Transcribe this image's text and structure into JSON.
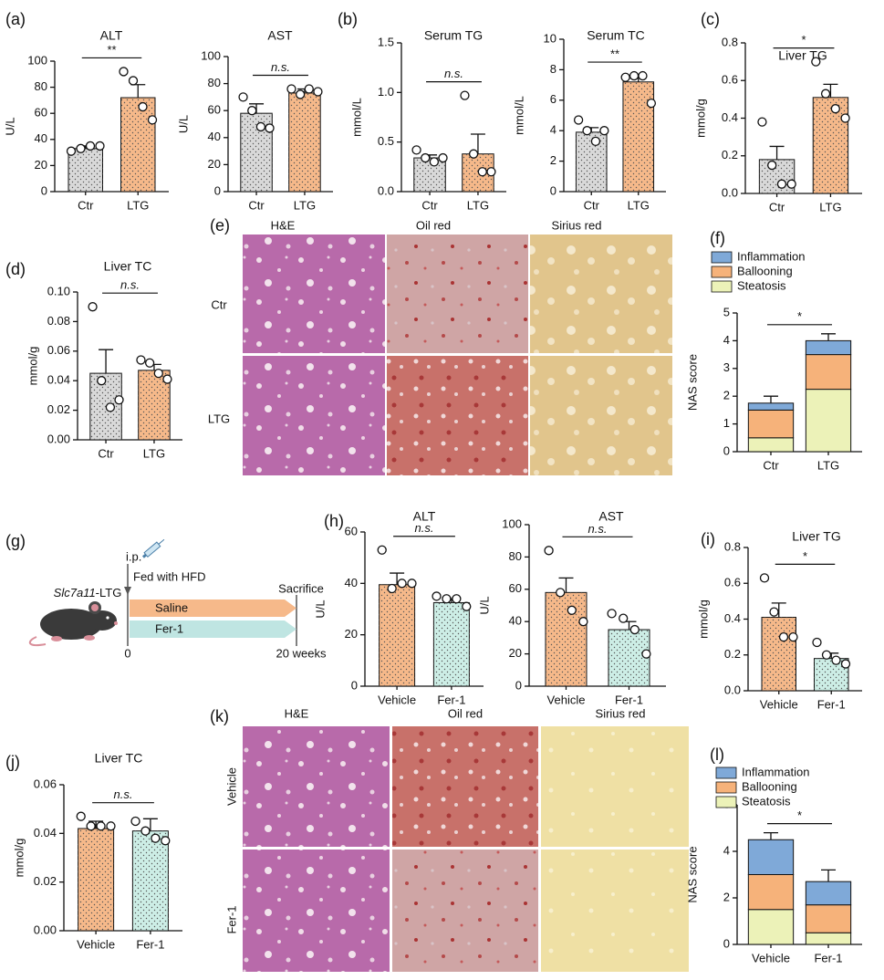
{
  "panel_labels": [
    "(a)",
    "(b)",
    "(c)",
    "(d)",
    "(e)",
    "(f)",
    "(g)",
    "(h)",
    "(i)",
    "(j)",
    "(k)",
    "(l)"
  ],
  "histology_e": {
    "columns": [
      "H&E",
      "Oil red",
      "Sirius red"
    ],
    "rows": [
      "Ctr",
      "LTG"
    ]
  },
  "histology_k": {
    "columns": [
      "H&E",
      "Oil red",
      "Sirius red"
    ],
    "rows": [
      "Vehicle",
      "Fer-1"
    ]
  },
  "schematic": {
    "route": "i.p.",
    "diet": "Fed with HFD",
    "strain_gene": "Slc7a11",
    "strain_suffix": "-LTG",
    "groups": [
      "Saline",
      "Fer-1"
    ],
    "endpoint": "Sacrifice",
    "start": "0",
    "end": "20 weeks"
  },
  "chart_data": [
    {
      "type": "bar",
      "title": "ALT",
      "ylabel": "U/L",
      "categories": [
        "Ctr",
        "LTG"
      ],
      "values": [
        33,
        72
      ],
      "errors": [
        2,
        10
      ],
      "points": [
        [
          31,
          33,
          35,
          35
        ],
        [
          92,
          85,
          65,
          55
        ]
      ],
      "colors": [
        "#d9d9d9",
        "#f6b98a"
      ],
      "ylim": [
        0,
        100
      ],
      "yticks": [
        0,
        20,
        40,
        60,
        80,
        100
      ],
      "significance": "**"
    },
    {
      "type": "bar",
      "title": "AST",
      "ylabel": "U/L",
      "categories": [
        "Ctr",
        "LTG"
      ],
      "values": [
        58,
        73
      ],
      "errors": [
        7,
        3
      ],
      "points": [
        [
          70,
          60,
          48,
          47
        ],
        [
          76,
          72,
          76,
          74
        ]
      ],
      "colors": [
        "#d9d9d9",
        "#f6b98a"
      ],
      "ylim": [
        0,
        100
      ],
      "yticks": [
        0,
        20,
        40,
        60,
        80,
        100
      ],
      "significance": "n.s."
    },
    {
      "type": "bar",
      "title": "Serum TG",
      "ylabel": "mmol/L",
      "categories": [
        "Ctr",
        "LTG"
      ],
      "values": [
        0.34,
        0.38
      ],
      "errors": [
        0.03,
        0.2
      ],
      "points": [
        [
          0.42,
          0.34,
          0.3,
          0.34
        ],
        [
          0.97,
          0.38,
          0.2,
          0.2
        ]
      ],
      "colors": [
        "#d9d9d9",
        "#f6b98a"
      ],
      "ylim": [
        0,
        1.5
      ],
      "yticks": [
        {
          "value": 0,
          "label": "0.0"
        },
        0.5,
        {
          "value": 1,
          "label": "1.0"
        },
        1.5
      ],
      "significance": "n.s."
    },
    {
      "type": "bar",
      "title": "Serum TC",
      "ylabel": "mmol/L",
      "categories": [
        "Ctr",
        "LTG"
      ],
      "values": [
        3.9,
        7.2
      ],
      "errors": [
        0.3,
        0.5
      ],
      "points": [
        [
          4.7,
          4.0,
          3.3,
          4.0
        ],
        [
          7.5,
          7.6,
          7.6,
          5.8
        ]
      ],
      "colors": [
        "#d9d9d9",
        "#f6b98a"
      ],
      "ylim": [
        0,
        10
      ],
      "yticks": [
        0,
        2,
        4,
        6,
        8,
        10
      ],
      "significance": "**"
    },
    {
      "type": "bar",
      "title": "Liver TG",
      "ylabel": "mmol/g",
      "categories": [
        "Ctr",
        "LTG"
      ],
      "values": [
        0.18,
        0.51
      ],
      "errors": [
        0.07,
        0.07
      ],
      "points": [
        [
          0.38,
          0.15,
          0.05,
          0.05
        ],
        [
          0.7,
          0.53,
          0.45,
          0.4
        ]
      ],
      "colors": [
        "#d9d9d9",
        "#f6b98a"
      ],
      "ylim": [
        0,
        0.8
      ],
      "yticks": [
        {
          "value": 0,
          "label": "0.0"
        },
        0.2,
        0.4,
        0.6,
        0.8
      ],
      "significance": "*"
    },
    {
      "type": "bar",
      "title": "Liver TC",
      "ylabel": "mmol/g",
      "categories": [
        "Ctr",
        "LTG"
      ],
      "values": [
        0.045,
        0.047
      ],
      "errors": [
        0.016,
        0.004
      ],
      "points": [
        [
          0.09,
          0.04,
          0.022,
          0.027
        ],
        [
          0.054,
          0.052,
          0.045,
          0.041
        ]
      ],
      "colors": [
        "#d9d9d9",
        "#f6b98a"
      ],
      "ylim": [
        0,
        0.1
      ],
      "yticks": [
        {
          "value": 0,
          "label": "0.00"
        },
        0.02,
        0.04,
        0.06,
        0.08,
        {
          "value": 0.1,
          "label": "0.10"
        }
      ],
      "significance": "n.s."
    },
    {
      "type": "stacked_bar",
      "ylabel": "NAS score",
      "categories": [
        "Ctr",
        "LTG"
      ],
      "series": [
        {
          "name": "Steatosis",
          "color": "#ecf2b8",
          "values": [
            0.5,
            2.25
          ],
          "errors": [
            0.25,
            0.25
          ]
        },
        {
          "name": "Ballooning",
          "color": "#f6b27a",
          "values": [
            1.0,
            1.25
          ],
          "errors": [
            0,
            0.25
          ]
        },
        {
          "name": "Inflammation",
          "color": "#7fa9d8",
          "values": [
            0.25,
            0.5
          ],
          "errors": [
            0.25,
            0.25
          ]
        }
      ],
      "ylim": [
        0,
        5
      ],
      "yticks": [
        0,
        1,
        2,
        3,
        4,
        5
      ],
      "significance": "*"
    },
    {
      "type": "bar",
      "title": "ALT",
      "ylabel": "U/L",
      "categories": [
        "Vehicle",
        "Fer-1"
      ],
      "values": [
        39.5,
        32.5
      ],
      "errors": [
        4.5,
        1.5
      ],
      "points": [
        [
          53,
          38,
          40,
          40
        ],
        [
          35,
          34,
          34,
          31
        ]
      ],
      "colors": [
        "#f6b98a",
        "#cdeee6"
      ],
      "ylim": [
        0,
        60
      ],
      "yticks": [
        0,
        20,
        40,
        60
      ],
      "significance": "n.s."
    },
    {
      "type": "bar",
      "title": "AST",
      "ylabel": "U/L",
      "categories": [
        "Vehicle",
        "Fer-1"
      ],
      "values": [
        58,
        35
      ],
      "errors": [
        9,
        5
      ],
      "points": [
        [
          84,
          58,
          47,
          40
        ],
        [
          45,
          42,
          35,
          20
        ]
      ],
      "colors": [
        "#f6b98a",
        "#cdeee6"
      ],
      "ylim": [
        0,
        100
      ],
      "yticks": [
        0,
        20,
        40,
        60,
        80,
        100
      ],
      "significance": "n.s."
    },
    {
      "type": "bar",
      "title": "Liver TG",
      "ylabel": "mmol/g",
      "categories": [
        "Vehicle",
        "Fer-1"
      ],
      "values": [
        0.41,
        0.18
      ],
      "errors": [
        0.08,
        0.03
      ],
      "points": [
        [
          0.63,
          0.44,
          0.3,
          0.3
        ],
        [
          0.27,
          0.2,
          0.17,
          0.15
        ]
      ],
      "colors": [
        "#f6b98a",
        "#cdeee6"
      ],
      "ylim": [
        0,
        0.8
      ],
      "yticks": [
        {
          "value": 0,
          "label": "0.0"
        },
        0.2,
        0.4,
        0.6,
        0.8
      ],
      "significance": "*"
    },
    {
      "type": "bar",
      "title": "Liver TC",
      "ylabel": "mmol/g",
      "categories": [
        "Vehicle",
        "Fer-1"
      ],
      "values": [
        0.042,
        0.041
      ],
      "errors": [
        0.003,
        0.005
      ],
      "points": [
        [
          0.047,
          0.043,
          0.043,
          0.043
        ],
        [
          0.045,
          0.041,
          0.038,
          0.037
        ]
      ],
      "colors": [
        "#f6b98a",
        "#cdeee6"
      ],
      "ylim": [
        0,
        0.06
      ],
      "yticks": [
        {
          "value": 0,
          "label": "0.00"
        },
        0.02,
        0.04,
        0.06
      ],
      "significance": "n.s."
    },
    {
      "type": "stacked_bar",
      "ylabel": "NAS score",
      "categories": [
        "Vehicle",
        "Fer-1"
      ],
      "series": [
        {
          "name": "Steatosis",
          "color": "#ecf2b8",
          "values": [
            1.5,
            0.5
          ],
          "errors": [
            0.3,
            0.3
          ]
        },
        {
          "name": "Ballooning",
          "color": "#f6b27a",
          "values": [
            1.5,
            1.2
          ],
          "errors": [
            0.4,
            0.3
          ]
        },
        {
          "name": "Inflammation",
          "color": "#7fa9d8",
          "values": [
            1.5,
            1.0
          ],
          "errors": [
            0.3,
            0.5
          ]
        }
      ],
      "ylim": [
        0,
        6
      ],
      "yticks": [
        0,
        2,
        4,
        6
      ],
      "significance": "*"
    }
  ]
}
